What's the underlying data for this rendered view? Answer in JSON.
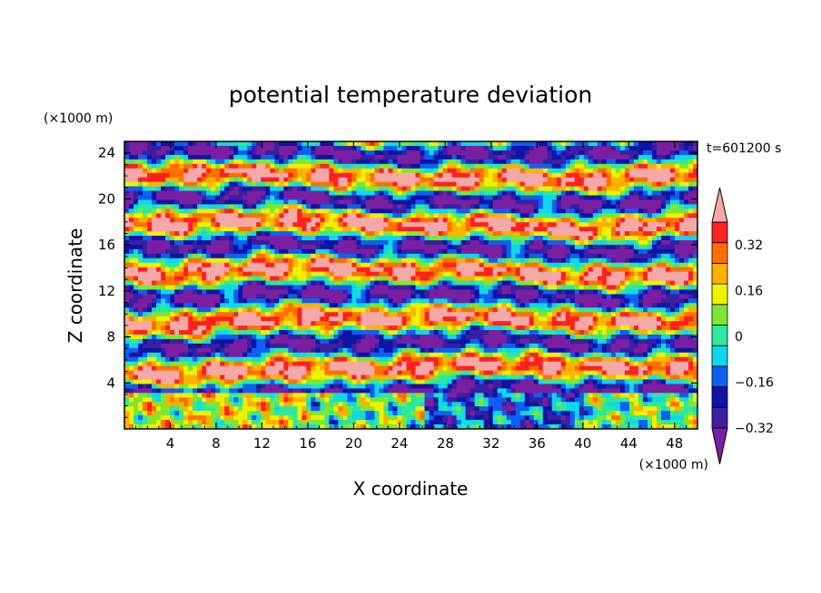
{
  "chart_data": {
    "type": "heatmap",
    "title": "potential temperature deviation",
    "xlabel": "X coordinate",
    "ylabel": "Z coordinate",
    "x_unit": "(×1000 m)",
    "y_unit": "(×1000 m)",
    "time_label": "t=601200 s",
    "xlim": [
      0,
      50
    ],
    "ylim": [
      0,
      25
    ],
    "x_ticks": [
      4,
      8,
      12,
      16,
      20,
      24,
      28,
      32,
      36,
      40,
      44,
      48
    ],
    "y_ticks": [
      4,
      8,
      12,
      16,
      20,
      24
    ],
    "colorbar": {
      "levels": [
        -0.4,
        -0.32,
        -0.24,
        -0.16,
        -0.08,
        0,
        0.08,
        0.16,
        0.24,
        0.32,
        0.4
      ],
      "tick_labels": [
        "0.32",
        "0.16",
        "0",
        "−0.16",
        "−0.32"
      ],
      "tick_values": [
        0.32,
        0.16,
        0,
        -0.16,
        -0.32
      ],
      "colors": [
        "#7a1fa2",
        "#3b1fa0",
        "#0f14a5",
        "#0d5ff5",
        "#0fd8e8",
        "#2ee8a0",
        "#7ee830",
        "#f0f000",
        "#ffb000",
        "#ff7000",
        "#ff2020",
        "#f4a8a8"
      ]
    }
  }
}
